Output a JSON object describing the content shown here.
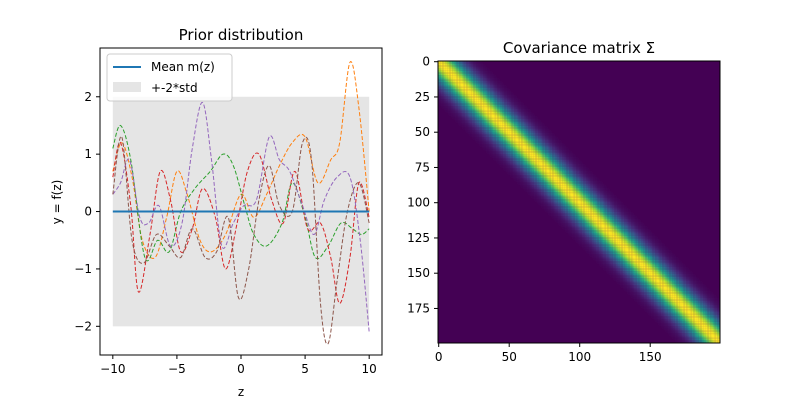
{
  "chart_data": [
    {
      "type": "line",
      "title": "Prior distribution",
      "xlabel": "z",
      "ylabel": "y = f(z)",
      "xlim": [
        -11.0,
        11.0
      ],
      "ylim": [
        -2.5,
        2.85
      ],
      "xticks": [
        -10,
        -5,
        0,
        5,
        10
      ],
      "xtick_labels": [
        "−10",
        "−5",
        "0",
        "5",
        "10"
      ],
      "yticks": [
        -2,
        -1,
        0,
        1,
        2
      ],
      "ytick_labels": [
        "−2",
        "−1",
        "0",
        "1",
        "2"
      ],
      "legend": {
        "placement": "top-left",
        "entries": [
          "Mean m(z)",
          "+-2*std"
        ]
      },
      "mean_line": {
        "name": "Mean m(z)",
        "color": "#1f77b4",
        "x": [
          -10,
          10
        ],
        "y": [
          0,
          0
        ]
      },
      "std_band": {
        "name": "+-2*std",
        "color": "#d3d3d3",
        "x": [
          -10,
          10
        ],
        "lower": -2,
        "upper": 2
      },
      "series": [
        {
          "name": "sample-orange",
          "color": "#ff7f0e",
          "style": "dashed",
          "x": [
            -10,
            -9.3,
            -8.5,
            -7.7,
            -6.7,
            -5.8,
            -5.0,
            -4.2,
            -3.2,
            -2.3,
            -1.2,
            0.0,
            1.0,
            2.0,
            3.0,
            4.0,
            5.0,
            6.0,
            7.0,
            7.7,
            8.5,
            9.2,
            10
          ],
          "y": [
            0.7,
            1.2,
            0.6,
            -0.5,
            -0.8,
            -0.1,
            0.7,
            0.3,
            -0.5,
            -0.7,
            -0.4,
            0.3,
            -0.1,
            0.3,
            0.8,
            1.2,
            1.3,
            0.5,
            0.9,
            1.2,
            2.6,
            1.8,
            0.0
          ]
        },
        {
          "name": "sample-green",
          "color": "#2ca02c",
          "style": "dashed",
          "x": [
            -10,
            -9.4,
            -8.6,
            -7.5,
            -6.5,
            -5.6,
            -4.7,
            -3.6,
            -2.4,
            -1.4,
            -0.6,
            0.3,
            1.0,
            2.0,
            3.2,
            4.0,
            5.0,
            5.8,
            6.8,
            7.8,
            8.7,
            9.4,
            10
          ],
          "y": [
            1.1,
            1.5,
            0.9,
            -0.8,
            -0.5,
            -0.7,
            0.0,
            0.4,
            0.7,
            1.0,
            0.8,
            0.1,
            -0.4,
            -0.6,
            -0.2,
            0.5,
            -0.1,
            -0.8,
            -0.6,
            -0.2,
            -0.3,
            -0.4,
            -0.3
          ]
        },
        {
          "name": "sample-red",
          "color": "#d62728",
          "style": "dashed",
          "x": [
            -10,
            -9.4,
            -8.6,
            -8.0,
            -7.1,
            -6.3,
            -5.5,
            -4.7,
            -3.8,
            -3.0,
            -2.0,
            -1.2,
            -0.3,
            0.5,
            1.4,
            2.4,
            3.3,
            4.2,
            5.2,
            6.2,
            7.0,
            7.7,
            8.5,
            9.2,
            10
          ],
          "y": [
            0.6,
            1.2,
            0.1,
            -1.4,
            -0.4,
            0.7,
            0.2,
            -0.7,
            -0.3,
            0.4,
            -0.1,
            -1.0,
            -0.2,
            0.7,
            1.0,
            0.2,
            -0.2,
            0.7,
            -0.3,
            -0.2,
            -0.8,
            -1.6,
            -0.8,
            0.5,
            -0.1
          ]
        },
        {
          "name": "sample-purple",
          "color": "#9467bd",
          "style": "dashed",
          "x": [
            -10,
            -9.4,
            -8.7,
            -7.9,
            -7.2,
            -6.4,
            -5.5,
            -4.6,
            -3.8,
            -3.0,
            -2.3,
            -1.5,
            -0.6,
            0.2,
            1.2,
            2.2,
            3.0,
            3.8,
            4.8,
            5.7,
            6.5,
            7.5,
            8.5,
            9.3,
            10
          ],
          "y": [
            0.3,
            0.5,
            0.9,
            -0.1,
            -0.2,
            0.1,
            -0.6,
            -0.2,
            1.1,
            1.9,
            0.9,
            -0.6,
            -0.2,
            0.1,
            0.2,
            1.3,
            0.9,
            0.7,
            0.1,
            -0.4,
            0.2,
            0.6,
            0.6,
            -0.5,
            -2.1
          ]
        },
        {
          "name": "sample-brown",
          "color": "#8c564b",
          "style": "dashed",
          "x": [
            -10,
            -9.3,
            -8.5,
            -7.6,
            -6.6,
            -5.6,
            -4.7,
            -3.8,
            -2.8,
            -1.9,
            -1.0,
            -0.2,
            0.6,
            1.4,
            2.2,
            3.0,
            4.0,
            4.8,
            5.5,
            6.2,
            6.8,
            7.5,
            8.3,
            9.2,
            10
          ],
          "y": [
            0.3,
            1.3,
            -0.5,
            -0.9,
            -0.4,
            -0.6,
            -0.8,
            -0.3,
            -0.8,
            -0.7,
            -0.1,
            -1.5,
            -1.0,
            0.2,
            0.8,
            0.1,
            0.0,
            1.2,
            0.9,
            -1.6,
            -2.3,
            -1.2,
            0.0,
            0.5,
            -0.2
          ]
        }
      ]
    },
    {
      "type": "heatmap",
      "title": "Covariance matrix Σ",
      "size": 200,
      "length_scale": 10,
      "colormap": "viridis",
      "xlim": [
        0,
        199
      ],
      "ylim": [
        0,
        199
      ],
      "xticks": [
        0,
        50,
        100,
        150
      ],
      "xtick_labels": [
        "0",
        "50",
        "100",
        "150"
      ],
      "yticks": [
        0,
        25,
        50,
        75,
        100,
        125,
        150,
        175
      ],
      "ytick_labels": [
        "0",
        "25",
        "50",
        "75",
        "100",
        "125",
        "150",
        "175"
      ]
    }
  ]
}
